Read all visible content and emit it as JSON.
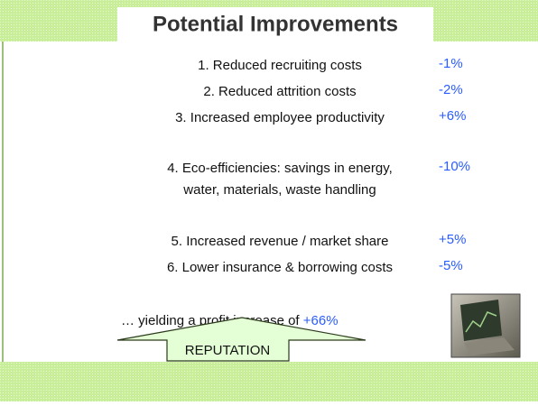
{
  "header": {
    "title": "Potential Improvements"
  },
  "items": [
    {
      "lines": [
        "1. Reduced recruiting costs"
      ],
      "value": "-1%"
    },
    {
      "lines": [
        "2. Reduced attrition costs"
      ],
      "value": "-2%"
    },
    {
      "lines": [
        "3. Increased employee productivity"
      ],
      "value": "+6%"
    },
    {
      "lines": [
        "4. Eco-efficiencies: savings in energy,",
        "water, materials, waste handling"
      ],
      "value": "-10%"
    },
    {
      "lines": [
        "5. Increased revenue / market share"
      ],
      "value": "+5%"
    },
    {
      "lines": [
        "6. Lower insurance & borrowing costs"
      ],
      "value": "-5%"
    }
  ],
  "summary": {
    "text": "… yielding a profit increase of",
    "value": "+66%"
  },
  "arrow": {
    "label": "REPUTATION"
  }
}
